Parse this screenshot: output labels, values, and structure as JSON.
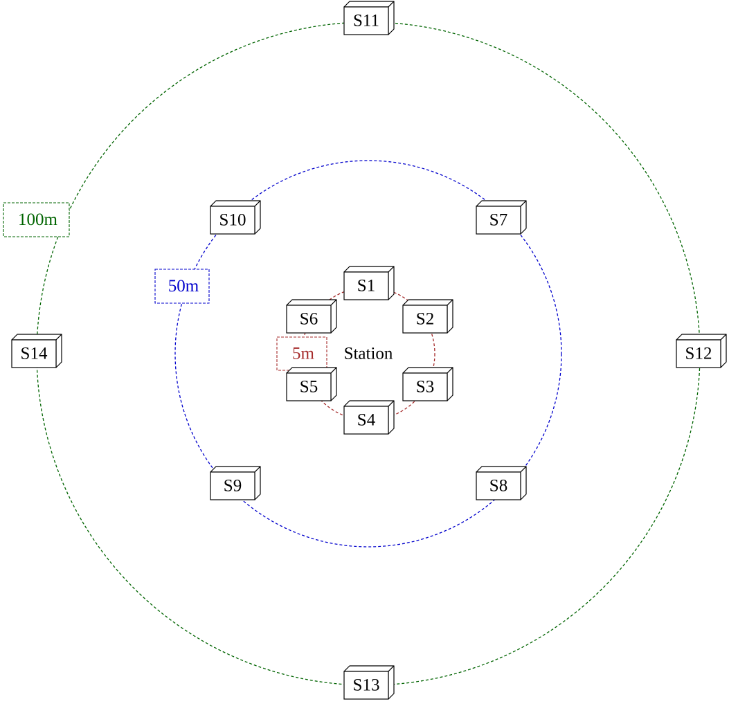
{
  "station": {
    "label": "Station"
  },
  "rings": [
    {
      "label": "5m",
      "color": "#a52a2a"
    },
    {
      "label": "50m",
      "color": "#0000cc"
    },
    {
      "label": "100m",
      "color": "#006400"
    }
  ],
  "sensors": [
    {
      "label": "S1"
    },
    {
      "label": "S2"
    },
    {
      "label": "S3"
    },
    {
      "label": "S4"
    },
    {
      "label": "S5"
    },
    {
      "label": "S6"
    },
    {
      "label": "S7"
    },
    {
      "label": "S8"
    },
    {
      "label": "S9"
    },
    {
      "label": "S10"
    },
    {
      "label": "S11"
    },
    {
      "label": "S12"
    },
    {
      "label": "S13"
    },
    {
      "label": "S14"
    }
  ]
}
